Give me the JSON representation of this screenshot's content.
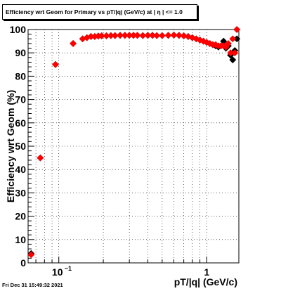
{
  "title": "Efficiency wrt Geom for Primary vs pT/|q| (GeV/c) at |  η | <= 1.0",
  "footer": "Fri Dec 31 15:49:32 2021",
  "chart_data": {
    "type": "scatter",
    "xlabel": "pT/|q| (GeV/c)",
    "ylabel": "Efficiency wrt Geom (%)",
    "x_scale": "log",
    "xlim": [
      0.062,
      1.65
    ],
    "ylim": [
      0,
      100
    ],
    "x_ticks": [
      {
        "value": 0.1,
        "label": "10^-1"
      },
      {
        "value": 1,
        "label": "1"
      }
    ],
    "y_ticks": [
      0,
      10,
      20,
      30,
      40,
      50,
      60,
      70,
      80,
      90,
      100
    ],
    "grid": true,
    "colors": {
      "series_a": "#000000",
      "series_b": "#ff0000"
    },
    "series": [
      {
        "marker_color": "#000000",
        "x": [
          0.065,
          0.075,
          0.095,
          0.125,
          0.145,
          0.155,
          0.165,
          0.175,
          0.185,
          0.195,
          0.21,
          0.225,
          0.24,
          0.26,
          0.28,
          0.3,
          0.32,
          0.34,
          0.37,
          0.4,
          0.43,
          0.46,
          0.5,
          0.55,
          0.6,
          0.65,
          0.7,
          0.75,
          0.8,
          0.85,
          0.9,
          0.95,
          1.0,
          1.05,
          1.1,
          1.15,
          1.2,
          1.25,
          1.3,
          1.35,
          1.4,
          1.45,
          1.5,
          1.55,
          1.6
        ],
        "y": [
          4,
          45,
          85,
          94,
          96,
          96.5,
          97,
          97,
          97.2,
          97.3,
          97.3,
          97.4,
          97.4,
          97.5,
          97.5,
          97.5,
          97.5,
          97.5,
          97.4,
          97.5,
          97.5,
          97.4,
          97.4,
          97.5,
          97.6,
          97.5,
          97.3,
          97,
          96.5,
          96,
          95.5,
          95,
          94.5,
          94,
          93.5,
          93,
          92.5,
          93,
          95,
          92,
          93,
          89,
          87,
          91,
          96
        ],
        "extra_points": [
          {
            "x": 1.6,
            "y": 100
          }
        ]
      },
      {
        "marker_color": "#ff0000",
        "x": [
          0.065,
          0.075,
          0.095,
          0.125,
          0.145,
          0.155,
          0.165,
          0.175,
          0.185,
          0.195,
          0.21,
          0.225,
          0.24,
          0.26,
          0.28,
          0.3,
          0.32,
          0.34,
          0.37,
          0.4,
          0.43,
          0.46,
          0.5,
          0.55,
          0.6,
          0.65,
          0.7,
          0.75,
          0.8,
          0.85,
          0.9,
          0.95,
          1.0,
          1.05,
          1.1,
          1.15,
          1.2,
          1.25,
          1.3,
          1.35,
          1.4,
          1.45,
          1.5,
          1.55,
          1.6
        ],
        "y": [
          3.5,
          45,
          85,
          94,
          96,
          96.5,
          97,
          97,
          97.2,
          97.3,
          97.3,
          97.4,
          97.4,
          97.5,
          97.5,
          97.5,
          97.5,
          97.5,
          97.4,
          97.5,
          97.5,
          97.4,
          97.4,
          97.5,
          97.6,
          97.5,
          97.3,
          97,
          96.5,
          96,
          95.5,
          95,
          94.5,
          94,
          93.5,
          93.5,
          93,
          93,
          93,
          92.5,
          94,
          90,
          96,
          90,
          100
        ]
      }
    ]
  }
}
